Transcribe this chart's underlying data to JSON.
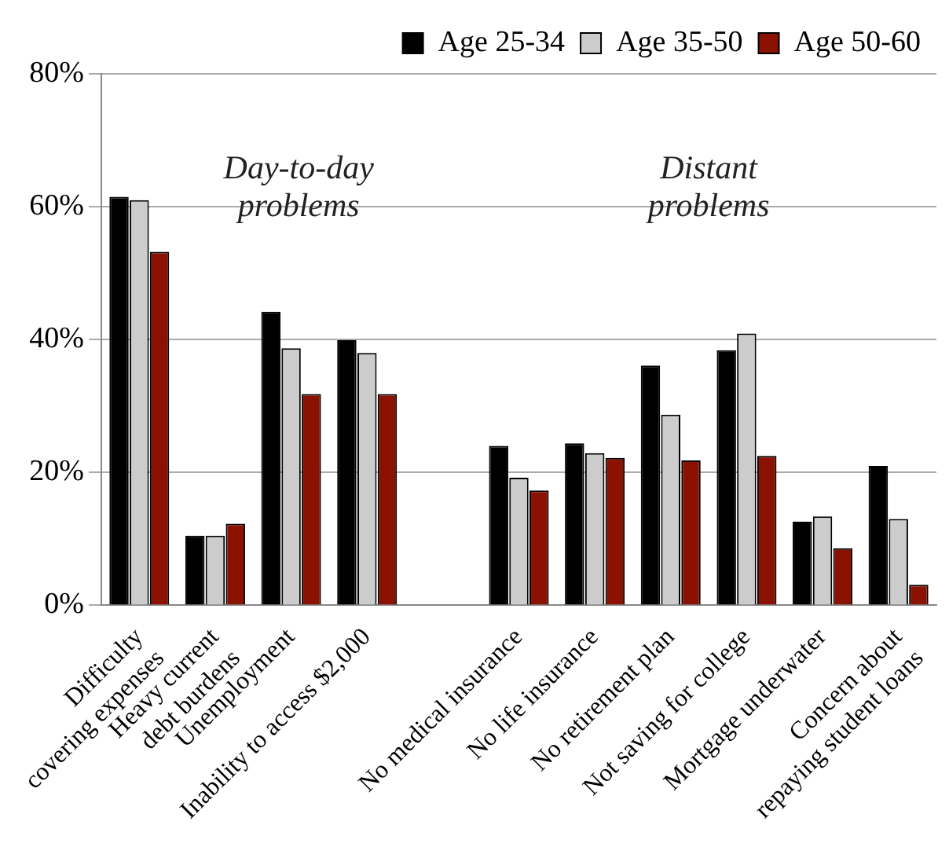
{
  "chart_data": {
    "type": "bar",
    "categories": [
      "Difficulty\ncovering expenses",
      "Heavy current\ndebt burdens",
      "Unemployment",
      "Inability to access $2,000",
      null,
      "No medical insurance",
      "No life insurance",
      "No retirement plan",
      "Not saving for college",
      "Mortgage underwater",
      "Concern about\nrepaying student loans"
    ],
    "series": [
      {
        "name": "Age 25-34",
        "color": "#000000",
        "values": [
          61.5,
          10.5,
          44.2,
          39.9,
          null,
          24.0,
          24.4,
          36.1,
          38.4,
          12.6,
          21.0
        ]
      },
      {
        "name": "Age 35-50",
        "color": "#cccccc",
        "values": [
          61.0,
          10.5,
          38.7,
          38.0,
          null,
          19.2,
          22.9,
          28.7,
          40.9,
          13.4,
          13.0
        ]
      },
      {
        "name": "Age 50-60",
        "color": "#8b1200",
        "values": [
          53.2,
          12.3,
          31.8,
          31.8,
          null,
          17.3,
          22.2,
          21.8,
          22.5,
          8.6,
          3.1
        ]
      }
    ],
    "ylim": [
      0,
      80
    ],
    "yticks": [
      {
        "value": 0,
        "label": "0%"
      },
      {
        "value": 20,
        "label": "20%"
      },
      {
        "value": 40,
        "label": "40%"
      },
      {
        "value": 60,
        "label": "60%"
      },
      {
        "value": 80,
        "label": "80%"
      }
    ],
    "grid": "y",
    "legend": "top right",
    "annotations": [
      "Day-to-day\nproblems",
      "Distant\nproblems"
    ]
  }
}
